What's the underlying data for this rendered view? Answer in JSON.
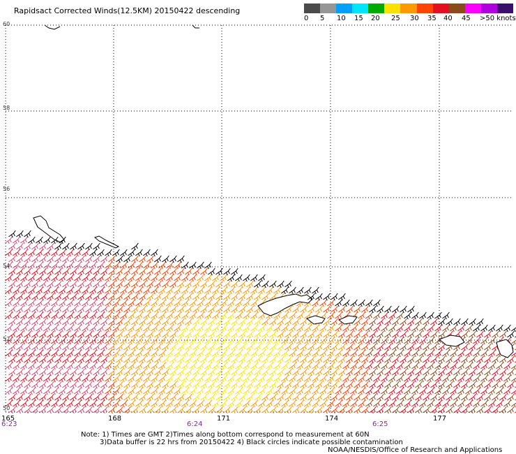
{
  "title": "Rapidsact Corrected Winds(12.5KM) 20150422 descending",
  "legend": {
    "colors": [
      "#4a4a4a",
      "#969696",
      "#00a0ff",
      "#00e5ff",
      "#00aa00",
      "#ffe100",
      "#ff9900",
      "#ff4400",
      "#e4101f",
      "#8c4a1a",
      "#ff00ff",
      "#b000e0",
      "#3a0f6e"
    ],
    "ticks": [
      "0",
      "5",
      "10",
      "15",
      "20",
      "25",
      "30",
      "35",
      "40",
      "45",
      ">50 knots"
    ]
  },
  "lat_labels": [
    "60",
    "58",
    "56",
    "54",
    "52",
    "50"
  ],
  "lon_labels": [
    "165",
    "168",
    "171",
    "174",
    "177"
  ],
  "time_labels": [
    "6:23",
    "6:24",
    "6:25"
  ],
  "notes": {
    "line1": "Note: 1) Times are GMT 2)Times along bottom correspond to measurement at 60N",
    "line2": "3)Data buffer is 22 hrs from 20150422 4) Black circles indicate possible contamination",
    "credit": "NOAA/NESDIS/Office of Research and Applications"
  }
}
